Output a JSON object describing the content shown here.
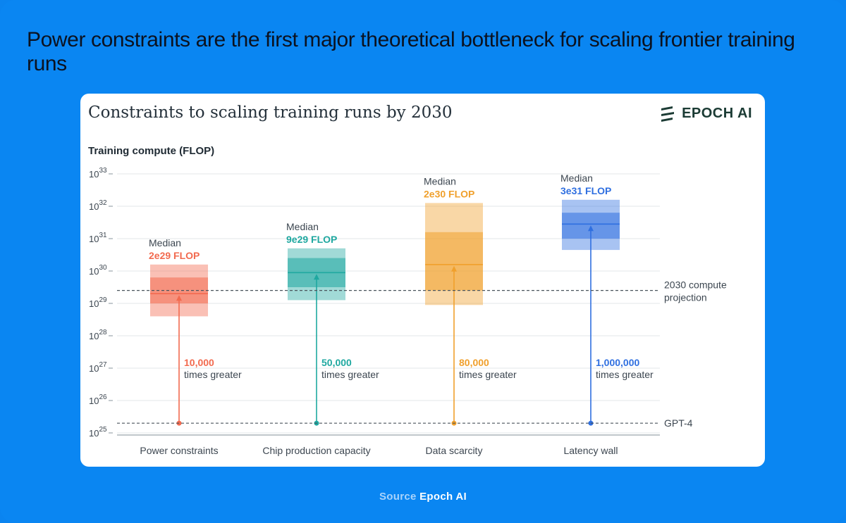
{
  "headline": "Power constraints are the first major theoretical bottleneck for scaling frontier training runs",
  "card": {
    "title": "Constraints to scaling training runs by 2030",
    "brand": "EPOCH AI"
  },
  "source": {
    "label": "Source",
    "name": "Epoch AI"
  },
  "colors": {
    "page_bg": "#0a86f2",
    "power": "#f26a4f",
    "chip": "#1fa8a0",
    "data": "#f0a02c",
    "latency": "#2f6fe0"
  },
  "chart_data": {
    "type": "box",
    "title": "Constraints to scaling training runs by 2030",
    "ylabel": "Training compute (FLOP)",
    "yscale": "log10",
    "ylim_exponent": [
      25,
      33
    ],
    "y_ticks": [
      {
        "base": "10",
        "exp": "25"
      },
      {
        "base": "10",
        "exp": "26"
      },
      {
        "base": "10",
        "exp": "27"
      },
      {
        "base": "10",
        "exp": "28"
      },
      {
        "base": "10",
        "exp": "29"
      },
      {
        "base": "10",
        "exp": "30"
      },
      {
        "base": "10",
        "exp": "31"
      },
      {
        "base": "10",
        "exp": "32"
      },
      {
        "base": "10",
        "exp": "33"
      }
    ],
    "reference_lines": [
      {
        "label": "2030 compute projection",
        "label_lines": [
          "2030 compute",
          "projection"
        ],
        "log_value": 29.4
      },
      {
        "label": "GPT-4",
        "label_lines": [
          "GPT-4"
        ],
        "log_value": 25.3
      }
    ],
    "categories": [
      {
        "name": "Power constraints",
        "color_key": "power",
        "median_label": "Median",
        "median_value": "2e29 FLOP",
        "log_median": 29.3,
        "log_outer": [
          28.6,
          30.2
        ],
        "log_inner": [
          29.0,
          29.8
        ],
        "multiplier": "10,000",
        "multiplier_text": "times greater"
      },
      {
        "name": "Chip production capacity",
        "color_key": "chip",
        "median_label": "Median",
        "median_value": "9e29 FLOP",
        "log_median": 29.95,
        "log_outer": [
          29.1,
          30.7
        ],
        "log_inner": [
          29.5,
          30.4
        ],
        "multiplier": "50,000",
        "multiplier_text": "times greater"
      },
      {
        "name": "Data scarcity",
        "color_key": "data",
        "median_label": "Median",
        "median_value": "2e30 FLOP",
        "log_median": 30.2,
        "log_outer": [
          28.95,
          32.1
        ],
        "log_inner": [
          29.4,
          31.2
        ],
        "multiplier": "80,000",
        "multiplier_text": "times greater"
      },
      {
        "name": "Latency wall",
        "color_key": "latency",
        "median_label": "Median",
        "median_value": "3e31 FLOP",
        "log_median": 31.45,
        "log_outer": [
          30.65,
          32.2
        ],
        "log_inner": [
          31.0,
          31.8
        ],
        "multiplier": "1,000,000",
        "multiplier_text": "times greater"
      }
    ]
  }
}
